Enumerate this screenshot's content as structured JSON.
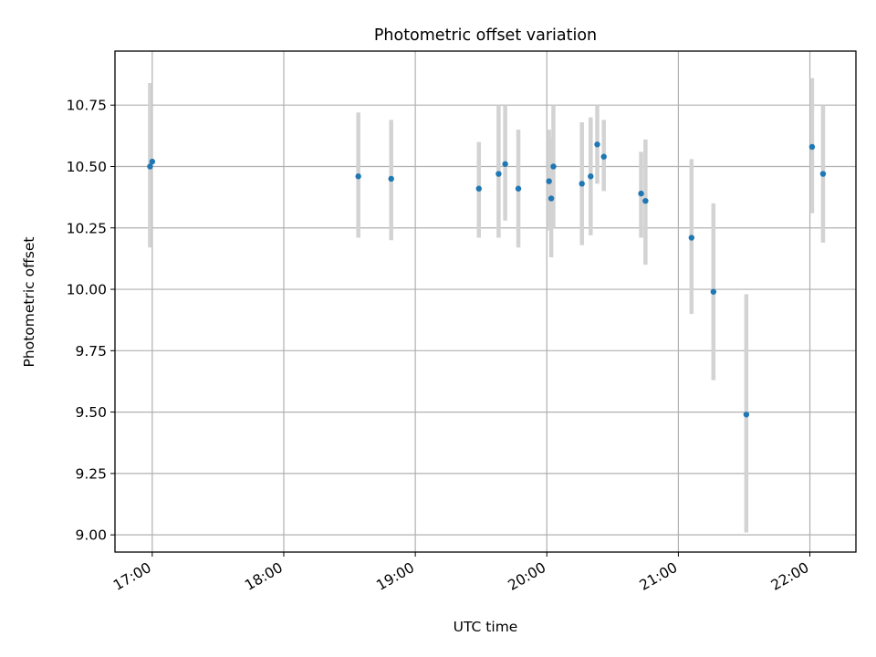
{
  "chart_data": {
    "type": "scatter",
    "title": "Photometric offset variation",
    "xlabel": "UTC time",
    "ylabel": "Photometric offset",
    "x_is_time": true,
    "xlim": [
      "16:43",
      "22:21"
    ],
    "ylim": [
      8.93,
      10.97
    ],
    "x_ticks": [
      "17:00",
      "18:00",
      "19:00",
      "20:00",
      "21:00",
      "22:00"
    ],
    "y_ticks": [
      9.0,
      9.25,
      9.5,
      9.75,
      10.0,
      10.25,
      10.5,
      10.75
    ],
    "y_tick_labels": [
      "9.00",
      "9.25",
      "9.50",
      "9.75",
      "10.00",
      "10.25",
      "10.50",
      "10.75"
    ],
    "grid": true,
    "colors": {
      "points": "#1f77b4",
      "errorbars": "#d3d3d3",
      "grid": "#b0b0b0"
    },
    "points": [
      {
        "x": "16:59",
        "y": 10.5,
        "err": [
          10.17,
          10.84
        ]
      },
      {
        "x": "17:00",
        "y": 10.52,
        "err": [
          10.52,
          10.52
        ]
      },
      {
        "x": "18:34",
        "y": 10.46,
        "err": [
          10.21,
          10.72
        ]
      },
      {
        "x": "18:49",
        "y": 10.45,
        "err": [
          10.2,
          10.69
        ]
      },
      {
        "x": "19:29",
        "y": 10.41,
        "err": [
          10.21,
          10.6
        ]
      },
      {
        "x": "19:38",
        "y": 10.47,
        "err": [
          10.21,
          10.75
        ]
      },
      {
        "x": "19:41",
        "y": 10.51,
        "err": [
          10.28,
          10.75
        ]
      },
      {
        "x": "19:47",
        "y": 10.41,
        "err": [
          10.17,
          10.65
        ]
      },
      {
        "x": "20:01",
        "y": 10.44,
        "err": [
          10.24,
          10.65
        ]
      },
      {
        "x": "20:02",
        "y": 10.37,
        "err": [
          10.13,
          10.62
        ]
      },
      {
        "x": "20:03",
        "y": 10.5,
        "err": [
          10.25,
          10.75
        ]
      },
      {
        "x": "20:16",
        "y": 10.43,
        "err": [
          10.18,
          10.68
        ]
      },
      {
        "x": "20:20",
        "y": 10.46,
        "err": [
          10.22,
          10.7
        ]
      },
      {
        "x": "20:23",
        "y": 10.59,
        "err": [
          10.43,
          10.75
        ]
      },
      {
        "x": "20:26",
        "y": 10.54,
        "err": [
          10.4,
          10.69
        ]
      },
      {
        "x": "20:43",
        "y": 10.39,
        "err": [
          10.21,
          10.56
        ]
      },
      {
        "x": "20:45",
        "y": 10.36,
        "err": [
          10.1,
          10.61
        ]
      },
      {
        "x": "21:06",
        "y": 10.21,
        "err": [
          9.9,
          10.53
        ]
      },
      {
        "x": "21:16",
        "y": 9.99,
        "err": [
          9.63,
          10.35
        ]
      },
      {
        "x": "21:31",
        "y": 9.49,
        "err": [
          9.01,
          9.98
        ]
      },
      {
        "x": "22:01",
        "y": 10.58,
        "err": [
          10.31,
          10.86
        ]
      },
      {
        "x": "22:06",
        "y": 10.47,
        "err": [
          10.19,
          10.75
        ]
      }
    ]
  }
}
